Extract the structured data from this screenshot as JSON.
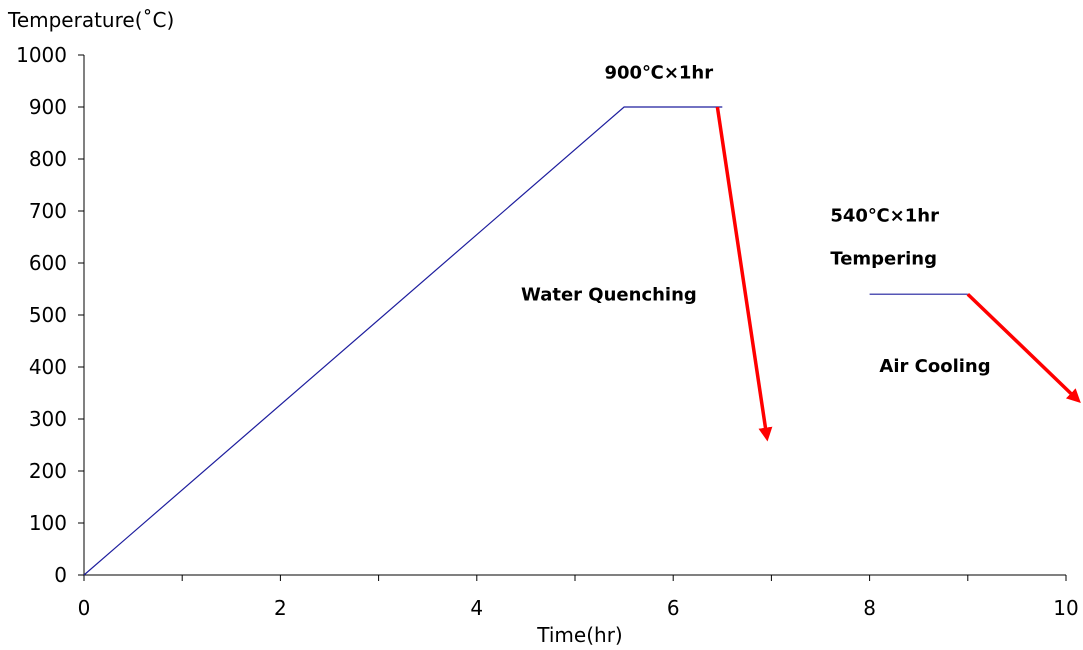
{
  "chart_data": {
    "type": "line",
    "title": "",
    "xlabel": "Time(hr)",
    "ylabel": "Temperature(˚C)",
    "xlim": [
      0,
      10
    ],
    "ylim": [
      0,
      1000
    ],
    "x_ticks": [
      0,
      2,
      4,
      6,
      8,
      10
    ],
    "x_tick_labels": [
      "0",
      "2",
      "4",
      "6",
      "8",
      "10"
    ],
    "y_ticks": [
      0,
      100,
      200,
      300,
      400,
      500,
      600,
      700,
      800,
      900,
      1000
    ],
    "y_tick_labels": [
      "0",
      "100",
      "200",
      "300",
      "400",
      "500",
      "600",
      "700",
      "800",
      "900",
      "1000"
    ],
    "grid": false,
    "series": [
      {
        "color": "#1e1e9e",
        "segments": [
          {
            "x": [
              0,
              5.5,
              6.5
            ],
            "y": [
              0,
              900,
              900
            ]
          },
          {
            "x": [
              8,
              9
            ],
            "y": [
              540,
              540
            ]
          }
        ]
      }
    ],
    "arrows": [
      {
        "from": [
          6.45,
          900
        ],
        "to": [
          6.95,
          270
        ],
        "color": "#ff0000"
      },
      {
        "from": [
          9,
          540
        ],
        "to": [
          10.1,
          340
        ],
        "color": "#ff0000"
      }
    ],
    "annotations": [
      {
        "text": "900℃×1hr",
        "x": 5.3,
        "y": 955
      },
      {
        "text": "540℃×1hr",
        "x": 7.6,
        "y": 680
      },
      {
        "text": "Tempering",
        "x": 7.6,
        "y": 597
      },
      {
        "text": "Water  Quenching",
        "x": 4.45,
        "y": 528
      },
      {
        "text": "Air  Cooling",
        "x": 8.1,
        "y": 390
      }
    ]
  }
}
